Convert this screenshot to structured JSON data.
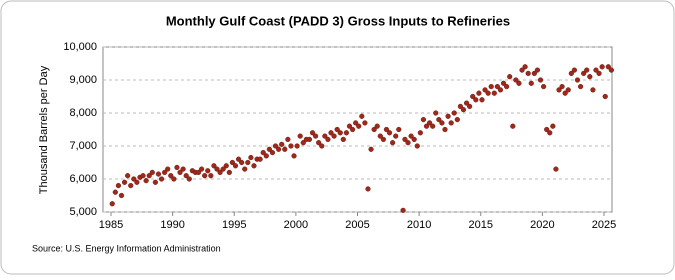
{
  "chart_data": {
    "type": "scatter",
    "title": "Monthly Gulf Coast (PADD 3) Gross Inputs to Refineries",
    "y_label": "Thousand Barrels per Day",
    "source": "Source: U.S. Energy Information Administration",
    "color": "#a0281a",
    "grid": true,
    "xlim": [
      1984.35,
      2025.65
    ],
    "ylim": [
      5000,
      10000
    ],
    "xticks": [
      1985,
      1990,
      1995,
      2000,
      2005,
      2010,
      2015,
      2020,
      2025
    ],
    "yticks": [
      {
        "value": 5000,
        "label": "5,000"
      },
      {
        "value": 6000,
        "label": "6,000"
      },
      {
        "value": 7000,
        "label": "7,000"
      },
      {
        "value": 8000,
        "label": "8,000"
      },
      {
        "value": 9000,
        "label": "9,000"
      },
      {
        "value": 10000,
        "label": "10,000"
      }
    ],
    "series": [
      {
        "name": "Gross Inputs",
        "x": [
          1985.1,
          1985.35,
          1985.6,
          1985.85,
          1986.1,
          1986.35,
          1986.6,
          1986.85,
          1987.1,
          1987.35,
          1987.6,
          1987.85,
          1988.1,
          1988.35,
          1988.6,
          1988.85,
          1989.1,
          1989.35,
          1989.6,
          1989.85,
          1990.1,
          1990.35,
          1990.6,
          1990.85,
          1991.1,
          1991.35,
          1991.6,
          1991.85,
          1992.1,
          1992.35,
          1992.6,
          1992.85,
          1993.1,
          1993.35,
          1993.6,
          1993.85,
          1994.1,
          1994.35,
          1994.6,
          1994.85,
          1995.1,
          1995.35,
          1995.6,
          1995.85,
          1996.1,
          1996.35,
          1996.6,
          1996.85,
          1997.1,
          1997.35,
          1997.6,
          1997.85,
          1998.1,
          1998.35,
          1998.6,
          1998.85,
          1999.1,
          1999.35,
          1999.6,
          1999.85,
          2000.1,
          2000.35,
          2000.6,
          2000.85,
          2001.1,
          2001.35,
          2001.6,
          2001.85,
          2002.1,
          2002.35,
          2002.6,
          2002.85,
          2003.1,
          2003.35,
          2003.6,
          2003.85,
          2004.1,
          2004.35,
          2004.6,
          2004.85,
          2005.1,
          2005.35,
          2005.6,
          2005.85,
          2006.1,
          2006.35,
          2006.6,
          2006.85,
          2007.1,
          2007.35,
          2007.6,
          2007.85,
          2008.1,
          2008.35,
          2008.7,
          2008.85,
          2009.1,
          2009.35,
          2009.6,
          2009.85,
          2010.1,
          2010.35,
          2010.6,
          2010.85,
          2011.1,
          2011.35,
          2011.6,
          2011.85,
          2012.1,
          2012.35,
          2012.6,
          2012.85,
          2013.1,
          2013.35,
          2013.6,
          2013.85,
          2014.1,
          2014.35,
          2014.6,
          2014.85,
          2015.1,
          2015.35,
          2015.6,
          2015.85,
          2016.1,
          2016.35,
          2016.6,
          2016.85,
          2017.1,
          2017.35,
          2017.6,
          2017.85,
          2018.1,
          2018.35,
          2018.6,
          2018.85,
          2019.1,
          2019.35,
          2019.6,
          2019.85,
          2020.1,
          2020.35,
          2020.6,
          2020.85,
          2021.1,
          2021.35,
          2021.6,
          2021.85,
          2022.1,
          2022.35,
          2022.6,
          2022.85,
          2023.1,
          2023.35,
          2023.6,
          2023.85,
          2024.1,
          2024.35,
          2024.6,
          2024.85,
          2025.1,
          2025.35,
          2025.6
        ],
        "values": [
          5250,
          5600,
          5800,
          5500,
          5900,
          6100,
          5800,
          6000,
          5900,
          6050,
          6100,
          5950,
          6100,
          6200,
          5900,
          6150,
          6000,
          6200,
          6300,
          6100,
          6000,
          6350,
          6200,
          6300,
          6100,
          6000,
          6250,
          6200,
          6200,
          6300,
          6100,
          6250,
          6100,
          6400,
          6300,
          6200,
          6300,
          6400,
          6200,
          6500,
          6400,
          6600,
          6500,
          6300,
          6500,
          6650,
          6400,
          6600,
          6600,
          6800,
          6700,
          6900,
          6800,
          7000,
          6900,
          7050,
          6900,
          7200,
          7000,
          6700,
          7000,
          7300,
          7100,
          7200,
          7200,
          7400,
          7300,
          7100,
          7000,
          7300,
          7200,
          7400,
          7300,
          7500,
          7400,
          7200,
          7400,
          7600,
          7500,
          7700,
          7600,
          7900,
          7700,
          5700,
          6900,
          7500,
          7600,
          7300,
          7200,
          7500,
          7400,
          7100,
          7300,
          7500,
          5050,
          7200,
          7100,
          7300,
          7200,
          7000,
          7400,
          7800,
          7600,
          7700,
          7600,
          8000,
          7800,
          7700,
          7500,
          7900,
          7700,
          8000,
          7800,
          8200,
          8100,
          8300,
          8200,
          8500,
          8400,
          8600,
          8400,
          8700,
          8600,
          8800,
          8600,
          8800,
          8700,
          8900,
          8800,
          9100,
          7600,
          9000,
          8900,
          9300,
          9400,
          9200,
          8900,
          9200,
          9300,
          9000,
          8800,
          7500,
          7400,
          7600,
          6300,
          8700,
          8800,
          8600,
          8700,
          9200,
          9300,
          9000,
          8800,
          9200,
          9300,
          9100,
          8700,
          9300,
          9200,
          9400,
          8500,
          9400,
          9300
        ]
      }
    ]
  }
}
